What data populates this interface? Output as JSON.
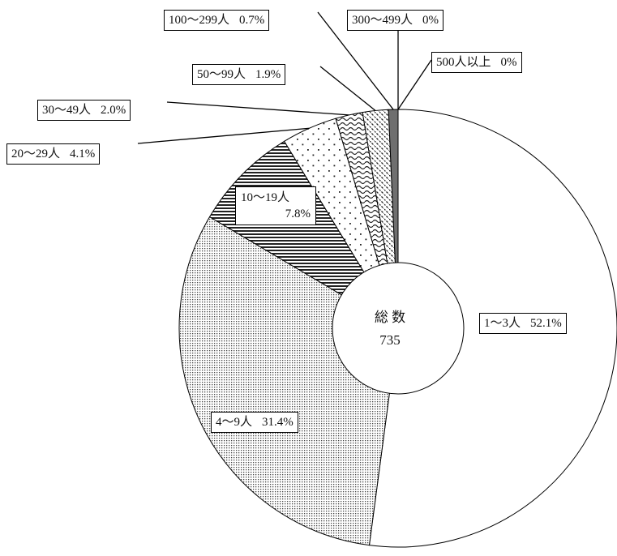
{
  "chart_data": {
    "type": "pie",
    "donut": true,
    "start_angle_deg": 0,
    "direction": "clockwise",
    "center_label": {
      "title": "総 数",
      "total": "735"
    },
    "slices": [
      {
        "name": "1～3人",
        "value": 52.1,
        "value_text": "52.1%",
        "pattern": "none"
      },
      {
        "name": "4～9人",
        "value": 31.4,
        "value_text": "31.4%",
        "pattern": "fine-dots"
      },
      {
        "name": "10～19人",
        "value": 7.8,
        "value_text": "7.8%",
        "pattern": "horizontal-lines"
      },
      {
        "name": "20～29人",
        "value": 4.1,
        "value_text": "4.1%",
        "pattern": "sparse-dots"
      },
      {
        "name": "30～49人",
        "value": 2.0,
        "value_text": "2.0%",
        "pattern": "wave"
      },
      {
        "name": "50～99人",
        "value": 1.9,
        "value_text": "1.9%",
        "pattern": "diagonal-dash"
      },
      {
        "name": "100～299人",
        "value": 0.7,
        "value_text": "0.7%",
        "pattern": "solid-gray"
      },
      {
        "name": "300～499人",
        "value": 0,
        "value_text": "0%",
        "pattern": "none"
      },
      {
        "name": "500人以上",
        "value": 0,
        "value_text": "0%",
        "pattern": "none"
      }
    ]
  }
}
